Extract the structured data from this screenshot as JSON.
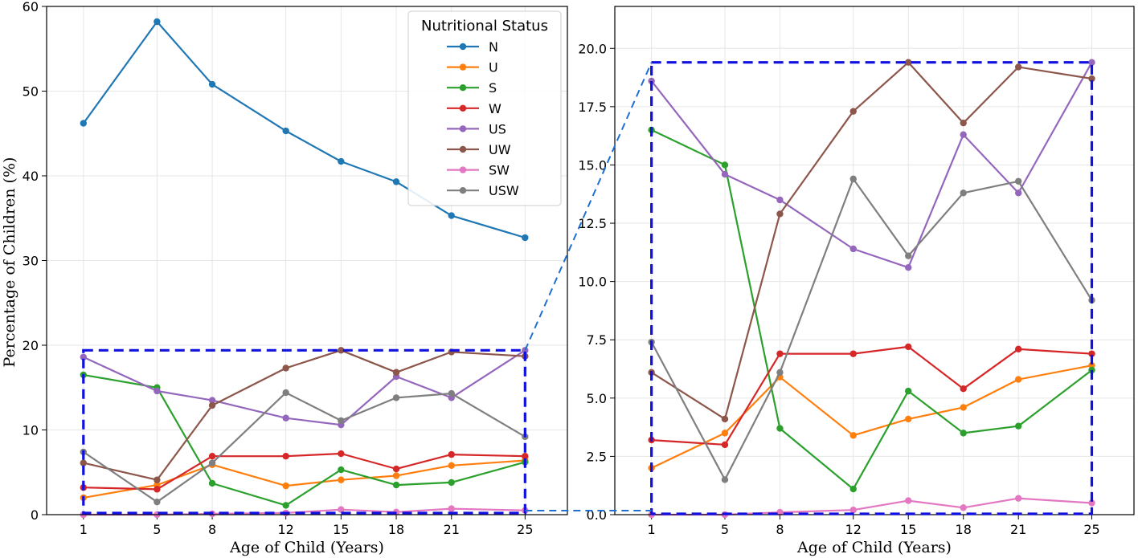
{
  "chart_data": [
    {
      "type": "line",
      "x": [
        1,
        5,
        8,
        12,
        15,
        18,
        21,
        25
      ],
      "xlabel": "Age of Child (Years)",
      "ylabel": "Percentage of Children (%)",
      "ylim": [
        0,
        60
      ],
      "yticks": [
        "0",
        "10",
        "20",
        "30",
        "40",
        "50",
        "60"
      ],
      "grid": true,
      "legend_title": "Nutritional Status",
      "legend_position": "top-right",
      "series": [
        {
          "name": "N",
          "color": "#1f77b4",
          "values": [
            46.2,
            58.2,
            50.8,
            45.3,
            41.7,
            39.3,
            35.3,
            32.7
          ]
        },
        {
          "name": "U",
          "color": "#ff7f0e",
          "values": [
            2.0,
            3.5,
            5.9,
            3.4,
            4.1,
            4.6,
            5.8,
            6.4
          ]
        },
        {
          "name": "S",
          "color": "#2ca02c",
          "values": [
            16.5,
            15.0,
            3.7,
            1.1,
            5.3,
            3.5,
            3.8,
            6.2
          ]
        },
        {
          "name": "W",
          "color": "#d62728",
          "values": [
            3.2,
            3.0,
            6.9,
            6.9,
            7.2,
            5.4,
            7.1,
            6.9
          ]
        },
        {
          "name": "US",
          "color": "#9467bd",
          "values": [
            18.6,
            14.6,
            13.5,
            11.4,
            10.6,
            16.3,
            13.8,
            19.4
          ]
        },
        {
          "name": "UW",
          "color": "#8c564b",
          "values": [
            6.1,
            4.1,
            12.9,
            17.3,
            19.4,
            16.8,
            19.2,
            18.7
          ]
        },
        {
          "name": "SW",
          "color": "#e377c2",
          "values": [
            0.0,
            0.0,
            0.1,
            0.2,
            0.6,
            0.3,
            0.7,
            0.5
          ]
        },
        {
          "name": "USW",
          "color": "#7f7f7f",
          "values": [
            7.4,
            1.5,
            6.1,
            14.4,
            11.1,
            13.8,
            14.3,
            9.2
          ]
        }
      ]
    },
    {
      "type": "line",
      "x": [
        1,
        5,
        8,
        12,
        15,
        18,
        21,
        25
      ],
      "xlabel": "Age of Child (Years)",
      "ylabel": "",
      "ylim": [
        0,
        21.8
      ],
      "yticks": [
        "0.0",
        "2.5",
        "5.0",
        "7.5",
        "10.0",
        "12.5",
        "15.0",
        "17.5",
        "20.0"
      ],
      "grid": true,
      "series_from": "zoom of first panel (series excluding N)"
    }
  ]
}
